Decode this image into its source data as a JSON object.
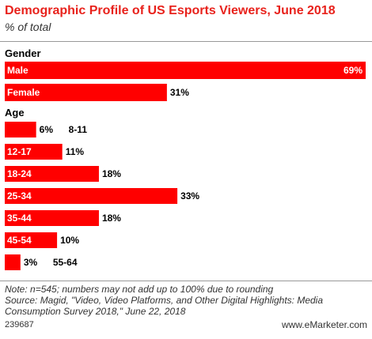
{
  "header": {
    "title": "Demographic Profile of US Esports Viewers, June 2018",
    "subtitle": "% of total"
  },
  "chart_data": {
    "type": "bar",
    "orientation": "horizontal",
    "unit": "%",
    "xlim": [
      0,
      69
    ],
    "groups": [
      {
        "name": "Gender",
        "categories": [
          "Male",
          "Female"
        ],
        "values": [
          69,
          31
        ],
        "labels": [
          "69%",
          "31%"
        ]
      },
      {
        "name": "Age",
        "categories": [
          "8-11",
          "12-17",
          "18-24",
          "25-34",
          "35-44",
          "45-54",
          "55-64"
        ],
        "values": [
          6,
          11,
          18,
          33,
          18,
          10,
          3
        ],
        "labels": [
          "6%",
          "11%",
          "18%",
          "33%",
          "18%",
          "10%",
          "3%"
        ]
      }
    ],
    "bar_color": "#ff0000"
  },
  "footer": {
    "note": "Note: n=545; numbers may not add up to 100% due to rounding",
    "source": "Source: Magid, \"Video, Video Platforms, and Other Digital Highlights: Media Consumption Survey 2018,\" June 22, 2018",
    "chart_id": "239687",
    "brand": "www.eMarketer.com"
  }
}
